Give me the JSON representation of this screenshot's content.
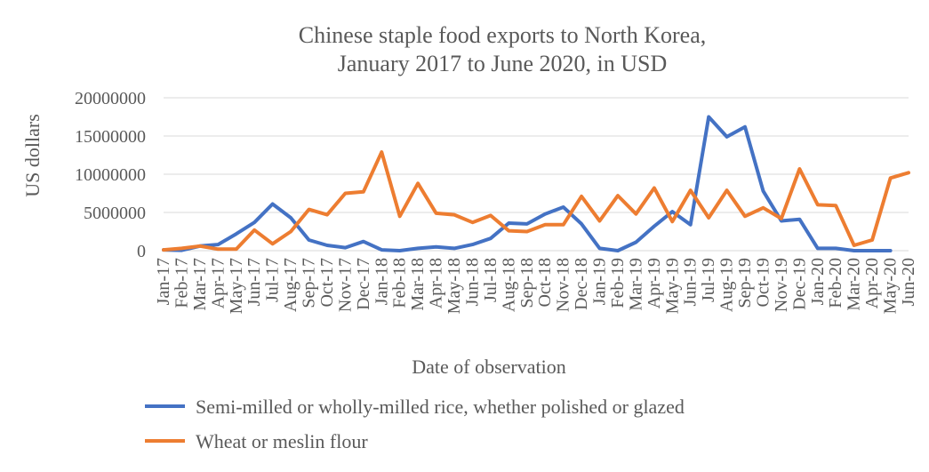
{
  "chart_data": {
    "type": "line",
    "title": "Chinese staple food exports to North Korea,",
    "subtitle": "January 2017 to June 2020, in USD",
    "xlabel": "Date of observation",
    "ylabel": "US dollars",
    "ylim": [
      0,
      20000000
    ],
    "yticks": [
      "0",
      "5000000",
      "10000000",
      "15000000",
      "20000000"
    ],
    "grid": true,
    "legend": "bottom",
    "categories": [
      "Jan-17",
      "Feb-17",
      "Mar-17",
      "Apr-17",
      "May-17",
      "Jun-17",
      "Jul-17",
      "Aug-17",
      "Sep-17",
      "Oct-17",
      "Nov-17",
      "Dec-17",
      "Jan-18",
      "Feb-18",
      "Mar-18",
      "Apr-18",
      "May-18",
      "Jun-18",
      "Jul-18",
      "Aug-18",
      "Sep-18",
      "Oct-18",
      "Nov-18",
      "Dec-18",
      "Jan-19",
      "Feb-19",
      "Mar-19",
      "Apr-19",
      "May-19",
      "Jun-19",
      "Jul-19",
      "Aug-19",
      "Sep-19",
      "Oct-19",
      "Nov-19",
      "Dec-19",
      "Jan-20",
      "Feb-20",
      "Mar-20",
      "Apr-20",
      "May-20",
      "Jun-20"
    ],
    "series": [
      {
        "name": "Semi-milled or wholly-milled rice, whether polished or glazed",
        "color": "#4472c4",
        "values": [
          100000,
          50000,
          600000,
          800000,
          2200000,
          3700000,
          6100000,
          4300000,
          1400000,
          700000,
          400000,
          1200000,
          100000,
          0,
          300000,
          500000,
          300000,
          800000,
          1600000,
          3600000,
          3500000,
          4800000,
          5700000,
          3500000,
          300000,
          0,
          1100000,
          3200000,
          5100000,
          3400000,
          17500000,
          14900000,
          16200000,
          7800000,
          3900000,
          4100000,
          300000,
          300000,
          0,
          0,
          0,
          null
        ]
      },
      {
        "name": "Wheat or meslin flour",
        "color": "#ed7d31",
        "values": [
          100000,
          300000,
          600000,
          200000,
          200000,
          2700000,
          900000,
          2500000,
          5400000,
          4700000,
          7500000,
          7700000,
          12900000,
          4500000,
          8800000,
          4900000,
          4700000,
          3700000,
          4600000,
          2600000,
          2500000,
          3400000,
          3400000,
          7100000,
          3900000,
          7200000,
          4800000,
          8200000,
          3800000,
          7900000,
          4300000,
          7900000,
          4500000,
          5600000,
          4200000,
          10700000,
          6000000,
          5900000,
          700000,
          1400000,
          9500000,
          10200000
        ]
      }
    ]
  }
}
